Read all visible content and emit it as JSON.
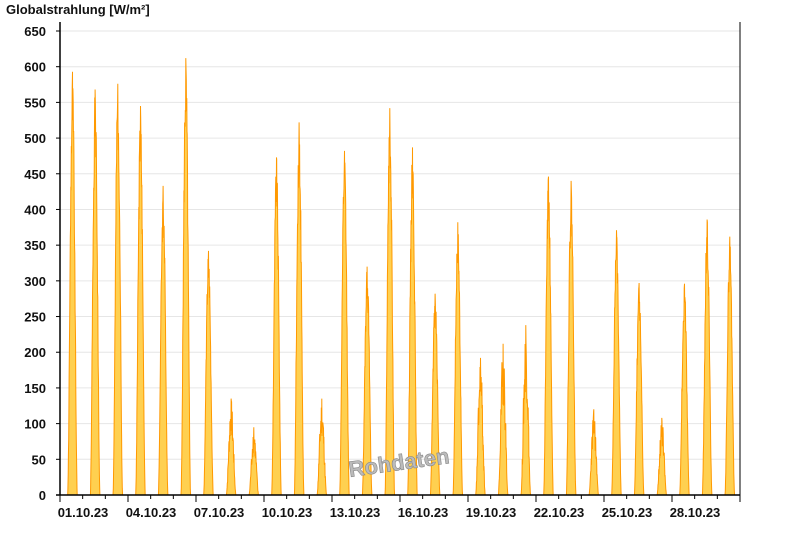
{
  "chart_data": {
    "type": "area",
    "title": "",
    "ylabel": "Globalstrahlung [W/m²]",
    "xlabel": "",
    "ylim": [
      0,
      650
    ],
    "yticks": [
      0,
      50,
      100,
      150,
      200,
      250,
      300,
      350,
      400,
      450,
      500,
      550,
      600,
      650
    ],
    "xlim": [
      "01.10.23",
      "31.10.23"
    ],
    "xtick_labels": [
      "01.10.23",
      "04.10.23",
      "07.10.23",
      "10.10.23",
      "13.10.23",
      "16.10.23",
      "19.10.23",
      "22.10.23",
      "25.10.23",
      "28.10.23"
    ],
    "grid": true,
    "watermark": "Rohdaten",
    "colors": {
      "fill": "#ffd050",
      "line": "#ff9900",
      "grid": "#e6e6e6"
    },
    "series": [
      {
        "dates": [
          "01.10.23",
          "02.10.23",
          "03.10.23",
          "04.10.23",
          "05.10.23",
          "06.10.23",
          "07.10.23",
          "08.10.23",
          "09.10.23",
          "10.10.23",
          "11.10.23",
          "12.10.23",
          "13.10.23",
          "14.10.23",
          "15.10.23",
          "16.10.23",
          "17.10.23",
          "18.10.23",
          "19.10.23",
          "20.10.23",
          "21.10.23",
          "22.10.23",
          "23.10.23",
          "24.10.23",
          "25.10.23",
          "26.10.23",
          "27.10.23",
          "28.10.23",
          "29.10.23",
          "30.10.23"
        ],
        "daily_peak": [
          593,
          568,
          576,
          545,
          433,
          612,
          342,
          135,
          95,
          473,
          522,
          135,
          482,
          320,
          542,
          487,
          282,
          382,
          192,
          212,
          238,
          446,
          440,
          120,
          371,
          297,
          108,
          296,
          386,
          362
        ]
      }
    ]
  }
}
